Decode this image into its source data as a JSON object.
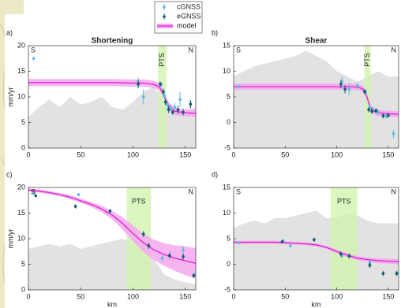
{
  "legend": {
    "items": [
      {
        "name": "cGNSS",
        "color": "#5bb8e0"
      },
      {
        "name": "eGNSS",
        "color": "#0d5a6a"
      },
      {
        "name": "model",
        "color": "#e020d0",
        "band_color": "#f4a8ef"
      }
    ]
  },
  "chart_data": [
    {
      "type": "profile",
      "panel_label": "a)",
      "title": "Shortening",
      "ylabel": "mm/yr",
      "south": "S",
      "north": "N",
      "xlim": [
        0,
        160
      ],
      "xticks": [
        0,
        50,
        100,
        150
      ],
      "ylim": [
        0,
        20
      ],
      "yticks": [
        0,
        5,
        10,
        15,
        20
      ],
      "pts": {
        "label": "PTS",
        "range": [
          124,
          132
        ],
        "label_rotated": true
      },
      "topography": {
        "x": [
          0,
          10,
          20,
          30,
          40,
          50,
          60,
          70,
          80,
          90,
          100,
          110,
          120,
          130,
          140,
          150,
          160
        ],
        "values": [
          6,
          8,
          9.5,
          8,
          10,
          8.5,
          9,
          10,
          8,
          7.5,
          9,
          11,
          12,
          9,
          8,
          7,
          8
        ]
      },
      "model": {
        "x": [
          0,
          20,
          40,
          60,
          80,
          100,
          110,
          115,
          120,
          125,
          128,
          130,
          132,
          135,
          140,
          150,
          160
        ],
        "values": [
          12.8,
          12.8,
          12.8,
          12.8,
          12.8,
          12.7,
          12.7,
          12.6,
          12.4,
          12.0,
          11.0,
          10.0,
          9.0,
          8.0,
          7.2,
          6.9,
          6.8
        ],
        "lower": [
          12.1,
          12.1,
          12.1,
          12.1,
          12.1,
          12.0,
          12.0,
          11.9,
          11.7,
          11.3,
          10.3,
          9.3,
          8.3,
          7.3,
          6.5,
          6.2,
          6.1
        ],
        "upper": [
          13.5,
          13.5,
          13.5,
          13.5,
          13.5,
          13.4,
          13.4,
          13.3,
          13.1,
          12.7,
          11.7,
          10.7,
          9.7,
          8.7,
          7.9,
          7.6,
          7.5
        ]
      },
      "cgnss": {
        "x": [
          5,
          105,
          110,
          127,
          130,
          133,
          136,
          140,
          145,
          155
        ],
        "values": [
          17.5,
          12.8,
          10,
          12.4,
          10.2,
          8.5,
          7.8,
          8,
          9.5,
          8.5
        ],
        "errors": [
          0.3,
          1,
          1.5,
          0.5,
          0.6,
          0.8,
          0.8,
          0.8,
          1.5,
          0.8
        ]
      },
      "egnss": {
        "x": [
          105,
          126,
          129,
          131,
          134,
          138,
          143,
          148,
          155
        ],
        "values": [
          12.5,
          12.5,
          11,
          9,
          7.5,
          7,
          7.5,
          7,
          8.6
        ],
        "errors": [
          0.8,
          0.5,
          0.6,
          0.6,
          0.6,
          0.5,
          0.8,
          0.6,
          0.8
        ]
      }
    },
    {
      "type": "profile",
      "panel_label": "b)",
      "title": "Shear",
      "south": "S",
      "north": "N",
      "xlim": [
        0,
        160
      ],
      "xticks": [
        0,
        50,
        100,
        150
      ],
      "ylim": [
        -5,
        15
      ],
      "yticks": [
        -5,
        0,
        5,
        10,
        15
      ],
      "pts": {
        "label": "PTS",
        "range": [
          127,
          133
        ],
        "label_rotated": true
      },
      "topography": {
        "x": [
          0,
          10,
          20,
          30,
          40,
          50,
          60,
          70,
          80,
          90,
          100,
          110,
          120,
          130,
          140,
          150,
          160
        ],
        "values": [
          9,
          10,
          11,
          11.5,
          12,
          12.5,
          13,
          14,
          13,
          12,
          10,
          9,
          8,
          9,
          10,
          9,
          9
        ]
      },
      "model": {
        "x": [
          0,
          20,
          40,
          60,
          80,
          100,
          110,
          115,
          120,
          125,
          128,
          130,
          132,
          135,
          140,
          150,
          160
        ],
        "values": [
          7.0,
          7.0,
          7.0,
          7.0,
          7.0,
          7.0,
          7.0,
          7.0,
          6.9,
          6.6,
          5.8,
          4.5,
          3.2,
          2.3,
          1.9,
          1.7,
          1.6
        ],
        "lower": [
          6.4,
          6.4,
          6.4,
          6.4,
          6.4,
          6.4,
          6.4,
          6.4,
          6.3,
          6.0,
          5.2,
          3.9,
          2.6,
          1.7,
          1.3,
          1.1,
          1.0
        ],
        "upper": [
          7.6,
          7.6,
          7.6,
          7.6,
          7.6,
          7.6,
          7.6,
          7.6,
          7.5,
          7.2,
          6.4,
          5.1,
          3.8,
          2.9,
          2.5,
          2.3,
          2.2
        ]
      },
      "cgnss": {
        "x": [
          5,
          105,
          112,
          120,
          128,
          132,
          135,
          140,
          148,
          155
        ],
        "values": [
          7,
          8,
          6.5,
          7.2,
          6,
          3,
          2.5,
          2,
          1.2,
          -2.2
        ],
        "errors": [
          0.3,
          1,
          1.2,
          0.6,
          0.5,
          0.6,
          0.6,
          0.6,
          0.5,
          0.8
        ]
      },
      "egnss": {
        "x": [
          104,
          108,
          127,
          131,
          134,
          138,
          145,
          150
        ],
        "values": [
          7.5,
          6.5,
          6,
          2.5,
          2.2,
          2.3,
          1.3,
          1.4
        ],
        "errors": [
          0.8,
          0.8,
          0.5,
          0.5,
          0.5,
          0.5,
          0.5,
          0.5
        ]
      }
    },
    {
      "type": "profile",
      "panel_label": "c)",
      "ylabel": "mm/yr",
      "xlabel": "km",
      "south": "S",
      "north": "N",
      "xlim": [
        0,
        160
      ],
      "xticks": [
        0,
        50,
        100,
        150
      ],
      "ylim": [
        0,
        20
      ],
      "yticks": [
        0,
        5,
        10,
        15,
        20
      ],
      "pts": {
        "label": "PTS",
        "range": [
          94,
          117
        ],
        "label_rotated": false
      },
      "topography": {
        "x": [
          0,
          10,
          20,
          30,
          40,
          50,
          60,
          70,
          80,
          90,
          100,
          110,
          120,
          130,
          140,
          150,
          160
        ],
        "values": [
          8,
          8.5,
          9,
          8.5,
          9,
          8,
          8.5,
          9,
          9.5,
          10,
          9,
          8.5,
          6,
          3,
          2,
          1.5,
          1
        ]
      },
      "model": {
        "x": [
          0,
          10,
          20,
          30,
          40,
          50,
          60,
          70,
          80,
          90,
          100,
          110,
          120,
          130,
          140,
          150,
          160
        ],
        "values": [
          19.5,
          19.3,
          19,
          18.6,
          18.1,
          17.4,
          16.7,
          15.8,
          14.6,
          13,
          11,
          9.2,
          7.8,
          6.9,
          6.2,
          5.7,
          5.2
        ],
        "lower": [
          19.2,
          19.0,
          18.7,
          18.3,
          17.7,
          17.0,
          16.2,
          15.2,
          13.8,
          11.8,
          9.4,
          7.4,
          5.8,
          4.7,
          3.7,
          2.9,
          2.2
        ],
        "upper": [
          19.8,
          19.6,
          19.3,
          18.9,
          18.5,
          17.8,
          17.2,
          16.4,
          15.4,
          14.2,
          12.6,
          11.0,
          9.8,
          9.1,
          8.7,
          8.5,
          8.2
        ]
      },
      "cgnss": {
        "x": [
          5,
          48,
          128,
          148,
          160
        ],
        "values": [
          19,
          18.6,
          6.2,
          7.8,
          3
        ],
        "errors": [
          0.3,
          0.3,
          0.6,
          0.8,
          0.5
        ]
      },
      "egnss": {
        "x": [
          7,
          45,
          78,
          110,
          115,
          135,
          148,
          158
        ],
        "values": [
          18.4,
          16.3,
          15.4,
          10.9,
          8.6,
          6.7,
          6.5,
          2.8
        ],
        "errors": [
          0.3,
          0.4,
          0.4,
          0.6,
          0.6,
          0.6,
          0.6,
          0.5
        ]
      }
    },
    {
      "type": "profile",
      "panel_label": "d)",
      "xlabel": "km",
      "south": "S",
      "north": "N",
      "xlim": [
        0,
        160
      ],
      "xticks": [
        0,
        50,
        100,
        150
      ],
      "ylim": [
        -5,
        15
      ],
      "yticks": [
        -5,
        0,
        5,
        10,
        15
      ],
      "pts": {
        "label": "PTS",
        "range": [
          94,
          120
        ],
        "label_rotated": false
      },
      "topography": {
        "x": [
          0,
          10,
          20,
          30,
          40,
          50,
          60,
          70,
          80,
          90,
          100,
          110,
          120,
          130,
          140,
          150,
          160
        ],
        "values": [
          7,
          8,
          8.5,
          8,
          9,
          9,
          9.5,
          10,
          10.5,
          9,
          9,
          10,
          9.5,
          8.5,
          8,
          8,
          8
        ]
      },
      "model": {
        "x": [
          0,
          10,
          20,
          30,
          40,
          50,
          60,
          70,
          80,
          90,
          100,
          110,
          120,
          130,
          140,
          150,
          160
        ],
        "values": [
          4.3,
          4.3,
          4.3,
          4.3,
          4.3,
          4.2,
          4.1,
          4.0,
          3.8,
          3.3,
          2.5,
          1.8,
          1.2,
          0.9,
          0.7,
          0.6,
          0.5
        ],
        "lower": [
          4.0,
          4.0,
          4.0,
          4.0,
          4.0,
          3.9,
          3.8,
          3.7,
          3.5,
          3.0,
          2.1,
          1.4,
          0.8,
          0.5,
          0.2,
          0.1,
          0.0
        ],
        "upper": [
          4.6,
          4.6,
          4.6,
          4.6,
          4.6,
          4.5,
          4.4,
          4.3,
          4.1,
          3.6,
          2.9,
          2.2,
          1.6,
          1.3,
          1.2,
          1.1,
          1.0
        ]
      },
      "cgnss": {
        "x": [
          5,
          48,
          55,
          105,
          132,
          160
        ],
        "values": [
          4.2,
          4.6,
          3.6,
          1.7,
          0.3,
          -1.7
        ],
        "errors": [
          0.3,
          0.3,
          0.3,
          0.5,
          0.5,
          0.5
        ]
      },
      "egnss": {
        "x": [
          47,
          78,
          104,
          112,
          132,
          145,
          158
        ],
        "values": [
          4.4,
          4.8,
          2,
          1.6,
          -0.2,
          -1.8,
          -1.8
        ],
        "errors": [
          0.3,
          0.4,
          0.5,
          0.5,
          0.5,
          0.5,
          0.5
        ]
      }
    }
  ]
}
